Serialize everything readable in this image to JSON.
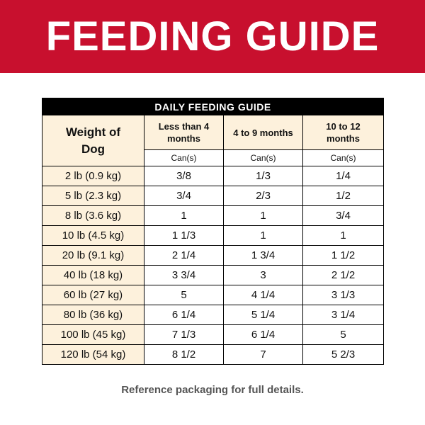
{
  "header": {
    "title": "FEEDING GUIDE"
  },
  "table": {
    "caption": "DAILY FEEDING GUIDE",
    "corner": "Weight of Dog",
    "columns": [
      "Less than 4 months",
      "4 to 9 months",
      "10 to 12 months"
    ],
    "units": [
      "Can(s)",
      "Can(s)",
      "Can(s)"
    ],
    "rows": [
      [
        "2 lb (0.9 kg)",
        "3/8",
        "1/3",
        "1/4"
      ],
      [
        "5 lb (2.3 kg)",
        "3/4",
        "2/3",
        "1/2"
      ],
      [
        "8 lb (3.6 kg)",
        "1",
        "1",
        "3/4"
      ],
      [
        "10 lb (4.5 kg)",
        "1 1/3",
        "1",
        "1"
      ],
      [
        "20 lb (9.1 kg)",
        "2 1/4",
        "1 3/4",
        "1 1/2"
      ],
      [
        "40 lb (18 kg)",
        "3 3/4",
        "3",
        "2 1/2"
      ],
      [
        "60 lb (27 kg)",
        "5",
        "4 1/4",
        "3 1/3"
      ],
      [
        "80 lb (36 kg)",
        "6 1/4",
        "5 1/4",
        "3 1/4"
      ],
      [
        "100 lb (45 kg)",
        "7 1/3",
        "6 1/4",
        "5"
      ],
      [
        "120 lb (54 kg)",
        "8 1/2",
        "7",
        "5 2/3"
      ]
    ]
  },
  "footer": "Reference packaging for full details."
}
